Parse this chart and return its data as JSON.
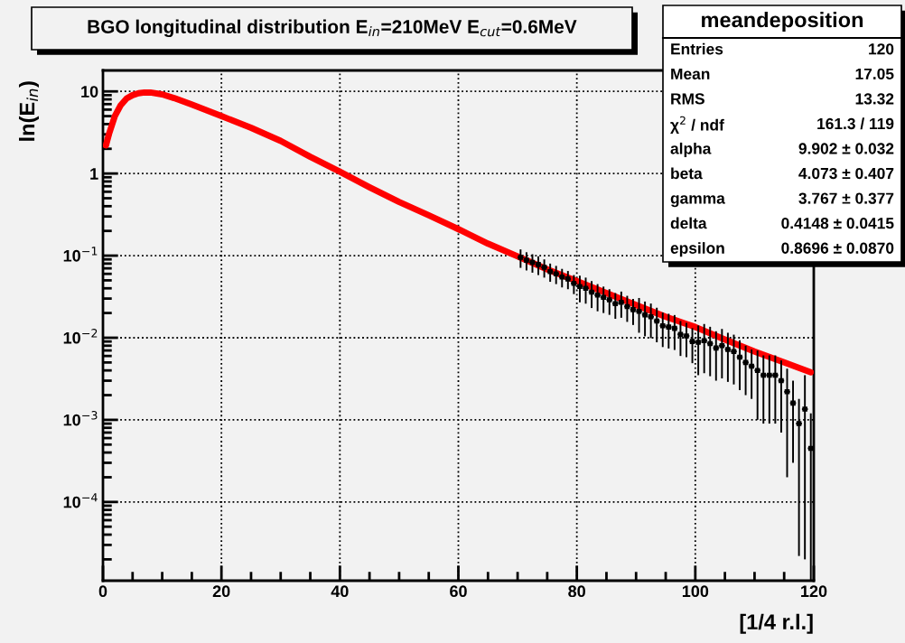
{
  "chart_data": {
    "type": "scatter",
    "title": "BGO longitudinal distribution E$_{in}$=210MeV E$_{cut}$=0.6MeV",
    "xlabel": "[1/4 r.l.]",
    "ylabel": "ln(E$_{in}$)",
    "log": "y",
    "grid": true,
    "xlim": [
      0,
      120
    ],
    "xticks": [
      0,
      20,
      40,
      60,
      80,
      100,
      120
    ],
    "ylim": [
      1.1e-05,
      18
    ],
    "yticks": [
      {
        "value": 0.0001,
        "label": "10$^{−4}$"
      },
      {
        "value": 0.001,
        "label": "10$^{−3}$"
      },
      {
        "value": 0.01,
        "label": "10$^{−2}$"
      },
      {
        "value": 0.1,
        "label": "10$^{−1}$"
      },
      1,
      10
    ],
    "annotations": [
      "meandeposition",
      "Entries  120",
      "Mean  17.05",
      "RMS  13.32",
      "χ$^{2}$ / ndf  161.3 / 119",
      "alpha  9.902 ± 0.032",
      "beta  4.073 ± 0.407",
      "gamma  3.767 ± 0.377",
      "delta  0.4148 ± 0.0415",
      "epsilon  0.8696 ± 0.0870"
    ],
    "series": [
      {
        "color": "#000000",
        "marker": "square",
        "x": [
          70.5,
          71.5,
          72.5,
          73.5,
          74.5,
          75.5,
          76.5,
          77.5,
          78.5,
          79.5,
          80.5,
          81.5,
          82.5,
          83.5,
          84.5,
          85.5,
          86.5,
          87.5,
          88.5,
          89.5,
          90.5,
          91.5,
          92.5,
          93.5,
          94.5,
          95.5,
          96.5,
          97.5,
          98.5,
          99.5,
          100.5,
          101.5,
          102.5,
          103.5,
          104.5,
          105.5,
          106.5,
          107.5,
          108.5,
          109.5,
          110.5,
          111.5,
          112.5,
          113.5,
          114.5,
          115.5,
          116.5,
          117.5,
          118.5,
          119.5
        ],
        "values": [
          0.095,
          0.088,
          0.083,
          0.078,
          0.072,
          0.064,
          0.06,
          0.055,
          0.052,
          0.046,
          0.042,
          0.04,
          0.036,
          0.033,
          0.031,
          0.029,
          0.026,
          0.027,
          0.024,
          0.022,
          0.021,
          0.019,
          0.018,
          0.016,
          0.014,
          0.0135,
          0.013,
          0.011,
          0.0105,
          0.009,
          0.0088,
          0.0092,
          0.0085,
          0.0075,
          0.008,
          0.0072,
          0.0068,
          0.0058,
          0.005,
          0.0045,
          0.004,
          0.0035,
          0.0035,
          0.0035,
          0.003,
          0.0022,
          0.0016,
          0.0009,
          0.00135,
          0.00045
        ],
        "errors": [
          0.024,
          0.022,
          0.021,
          0.02,
          0.018,
          0.016,
          0.015,
          0.014,
          0.013,
          0.012,
          0.015,
          0.014,
          0.013,
          0.012,
          0.011,
          0.01,
          0.009,
          0.0095,
          0.0084,
          0.0077,
          0.0095,
          0.0086,
          0.0081,
          0.0072,
          0.0063,
          0.0061,
          0.0059,
          0.005,
          0.0047,
          0.0041,
          0.0053,
          0.0055,
          0.0051,
          0.0045,
          0.0048,
          0.0043,
          0.0041,
          0.0035,
          0.003,
          0.0027,
          0.003,
          0.0026,
          0.0026,
          0.0026,
          0.0023,
          0.002,
          [
            0.0003,
            0.003
          ],
          [
            2.2e-05,
            0.0018
          ],
          [
            2e-05,
            0.0035
          ],
          [
            1.1e-05,
            0.0012
          ]
        ],
        "xerrors": [
          0.5,
          0.5,
          0.5,
          0.5,
          0.5,
          0.5,
          0.5,
          0.5,
          0.5,
          0.5,
          0.5,
          0.5,
          0.5,
          0.5,
          0.5,
          0.5,
          0.5,
          0.5,
          0.5,
          0.5,
          0.5,
          0.5,
          0.5,
          0.5,
          0.5,
          0.5,
          0.5,
          0.5,
          0.5,
          0.5,
          0.5,
          0.5,
          0.5,
          0.5,
          0.5,
          0.5,
          0.5,
          0.5,
          0.5,
          0.5,
          0.5,
          0.5,
          0.5,
          0.5,
          0.5,
          0.5,
          0.5,
          0.5,
          0.5,
          0.5
        ]
      },
      {
        "type": "line",
        "color": "#ff0000",
        "x": [
          0.5,
          1,
          2,
          3,
          4,
          5,
          6,
          7,
          8,
          10,
          12,
          15,
          20,
          25,
          30,
          35,
          40,
          45,
          50,
          55,
          60,
          65,
          70,
          75,
          80,
          85,
          90,
          95,
          100,
          105,
          110,
          115,
          119.5
        ],
        "values": [
          2.2,
          3.0,
          5.0,
          6.8,
          8.2,
          9.0,
          9.5,
          9.7,
          9.7,
          9.2,
          8.3,
          6.9,
          5.0,
          3.6,
          2.5,
          1.6,
          1.05,
          0.68,
          0.45,
          0.31,
          0.21,
          0.14,
          0.098,
          0.068,
          0.049,
          0.035,
          0.025,
          0.018,
          0.0135,
          0.0095,
          0.0068,
          0.005,
          0.0038
        ]
      }
    ]
  }
}
